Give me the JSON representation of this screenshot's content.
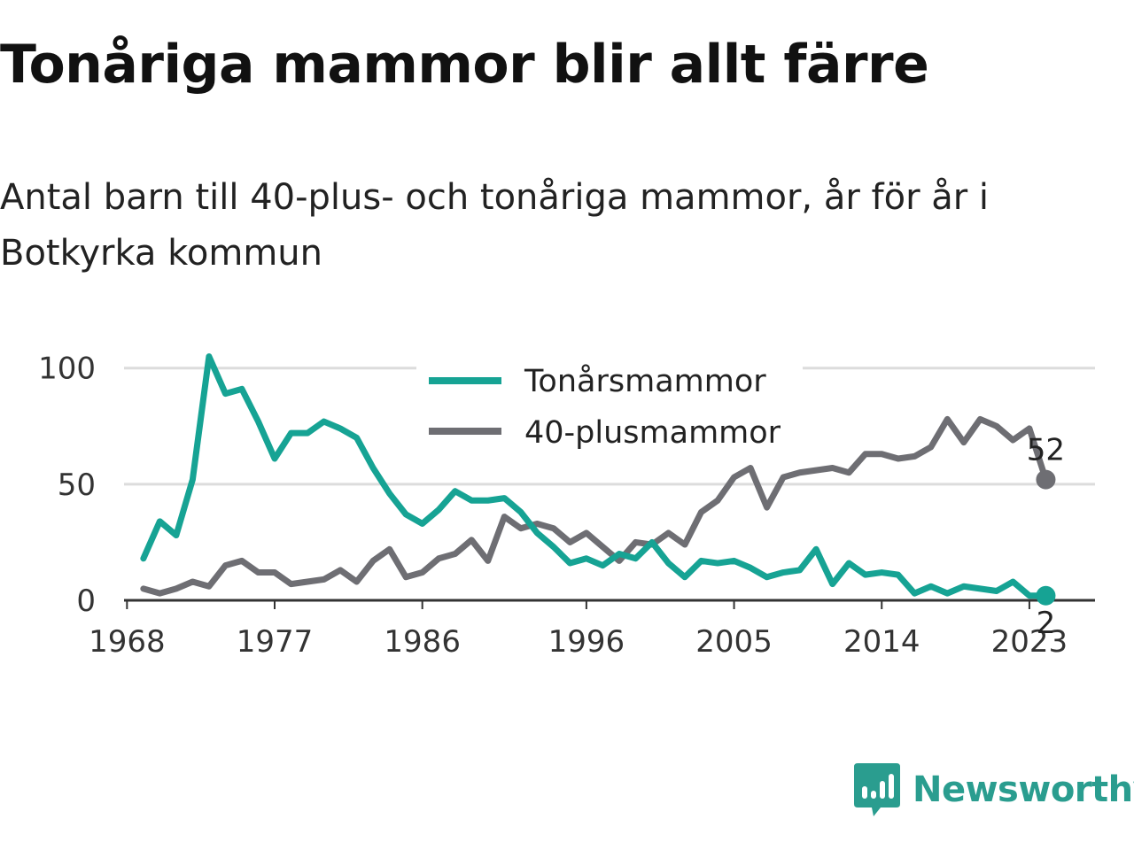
{
  "title": "Tonåriga mammor blir allt färre",
  "subtitle": "Antal barn till 40-plus- och tonåriga mammor, år för år i Botkyrka kommun",
  "brand": {
    "name": "Newsworthy",
    "color": "#2a9d8f"
  },
  "chart_data": {
    "type": "line",
    "x": [
      1969,
      1970,
      1971,
      1972,
      1973,
      1974,
      1975,
      1976,
      1977,
      1978,
      1979,
      1980,
      1981,
      1982,
      1983,
      1984,
      1985,
      1986,
      1987,
      1988,
      1989,
      1990,
      1991,
      1992,
      1993,
      1994,
      1995,
      1996,
      1997,
      1998,
      1999,
      2000,
      2001,
      2002,
      2003,
      2004,
      2005,
      2006,
      2007,
      2008,
      2009,
      2010,
      2011,
      2012,
      2013,
      2014,
      2015,
      2016,
      2017,
      2018,
      2019,
      2020,
      2021,
      2022,
      2023,
      2024
    ],
    "xticks": [
      1968,
      1977,
      1986,
      1996,
      2005,
      2014,
      2023
    ],
    "yticks": [
      0,
      50,
      100
    ],
    "xlim": [
      1966.2,
      2027.0
    ],
    "ylim": [
      0,
      106
    ],
    "grid": true,
    "legend_position": "top-center",
    "series": [
      {
        "name": "Tonårsmammor",
        "color": "#16a394",
        "values": [
          18,
          34,
          28,
          52,
          105,
          89,
          91,
          77,
          61,
          72,
          72,
          77,
          74,
          70,
          57,
          46,
          37,
          33,
          39,
          47,
          43,
          43,
          44,
          38,
          29,
          23,
          16,
          18,
          15,
          20,
          18,
          25,
          16,
          10,
          17,
          16,
          17,
          14,
          10,
          12,
          13,
          22,
          7,
          16,
          11,
          12,
          11,
          3,
          6,
          3,
          6,
          5,
          4,
          8,
          2,
          2
        ],
        "end_label": "2"
      },
      {
        "name": "40-plusmammor",
        "color": "#6e6e73",
        "values": [
          5,
          3,
          5,
          8,
          6,
          15,
          17,
          12,
          12,
          7,
          8,
          9,
          13,
          8,
          17,
          22,
          10,
          12,
          18,
          20,
          26,
          17,
          36,
          31,
          33,
          31,
          25,
          29,
          23,
          17,
          25,
          24,
          29,
          24,
          38,
          43,
          53,
          57,
          40,
          53,
          55,
          56,
          57,
          55,
          63,
          63,
          61,
          62,
          66,
          78,
          68,
          78,
          75,
          69,
          74,
          52
        ],
        "end_label": "52"
      }
    ]
  }
}
